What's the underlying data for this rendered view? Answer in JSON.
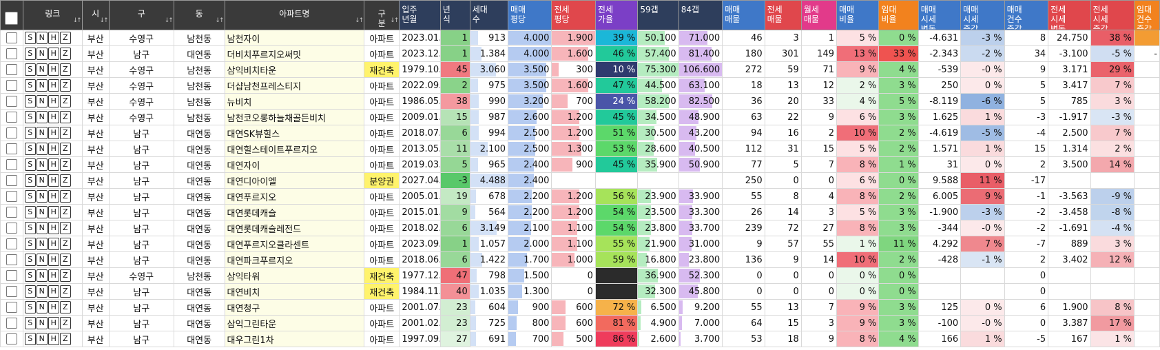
{
  "headers": [
    {
      "key": "chk",
      "label": "",
      "bg": "#3a3a3a"
    },
    {
      "key": "link",
      "label": "링크",
      "bg": "#3a3a3a"
    },
    {
      "key": "si",
      "label": "시",
      "bg": "#3a3a3a"
    },
    {
      "key": "gu",
      "label": "구",
      "bg": "#3a3a3a"
    },
    {
      "key": "dong",
      "label": "동",
      "bg": "#3a3a3a"
    },
    {
      "key": "name",
      "label": "아파트명",
      "bg": "#3a3a3a"
    },
    {
      "key": "type",
      "label": "구\n분",
      "bg": "#3a3a3a"
    },
    {
      "key": "year",
      "label": "입주\n년월",
      "bg": "#2e3e5c"
    },
    {
      "key": "age",
      "label": "년\n식",
      "bg": "#2e3e5c"
    },
    {
      "key": "hh",
      "label": "세대\n수",
      "bg": "#2e3e5c"
    },
    {
      "key": "sp",
      "label": "매매\n평당",
      "bg": "#3f78c8"
    },
    {
      "key": "jp",
      "label": "전세\n평당",
      "bg": "#e0474c"
    },
    {
      "key": "jr",
      "label": "전세\n가율",
      "bg": "#7b3fc6"
    },
    {
      "key": "g59",
      "label": "59갭",
      "bg": "#2e3e5c"
    },
    {
      "key": "g84",
      "label": "84갭",
      "bg": "#2e3e5c"
    },
    {
      "key": "sl",
      "label": "매매\n매물",
      "bg": "#3f78c8"
    },
    {
      "key": "jl",
      "label": "전세\n매물",
      "bg": "#e0474c"
    },
    {
      "key": "wl",
      "label": "월세\n매물",
      "bg": "#e23a8a"
    },
    {
      "key": "sr",
      "label": "매매\n비율",
      "bg": "#3f78c8"
    },
    {
      "key": "rr",
      "label": "임대\n비율",
      "bg": "#f2821e"
    },
    {
      "key": "sc",
      "label": "매매\n시세\n변동",
      "bg": "#3f78c8"
    },
    {
      "key": "sci",
      "label": "매매\n시세\n증감",
      "bg": "#3f78c8"
    },
    {
      "key": "sci2",
      "label": "매매\n건수\n증감",
      "bg": "#3f78c8"
    },
    {
      "key": "jc",
      "label": "전세\n시세\n변동",
      "bg": "#e0474c"
    },
    {
      "key": "jci",
      "label": "전세\n시세\n증감",
      "bg": "#e0474c"
    },
    {
      "key": "rci",
      "label": "임대\n건수\n증감",
      "bg": "#f2821e"
    }
  ],
  "link_buttons": [
    "S",
    "N",
    "H",
    "Z"
  ],
  "rows": [
    [
      "부산",
      "수영구",
      "남천동",
      "남천자이",
      "아파트",
      "2023.01.",
      "1",
      "913",
      "4.000",
      "1.900",
      "39 %",
      "50.100",
      "71.000",
      "46",
      "3",
      "1",
      "5 %",
      "0 %",
      "-4.631",
      "-3 %",
      "8",
      "24.750",
      "38 %",
      ""
    ],
    [
      "부산",
      "남구",
      "대연동",
      "더비치푸르지오써밋",
      "아파트",
      "2023.12.",
      "1",
      "1.384",
      "4.000",
      "1.600",
      "46 %",
      "57.400",
      "81.400",
      "180",
      "301",
      "149",
      "13 %",
      "33 %",
      "-2.343",
      "-2 %",
      "34",
      "-3.100",
      "-5 %",
      "-"
    ],
    [
      "부산",
      "수영구",
      "남천동",
      "삼익비치타운",
      "재건축",
      "1979.10.",
      "45",
      "3.060",
      "3.500",
      "300",
      "10 %",
      "75.300",
      "106.600",
      "272",
      "59",
      "71",
      "9 %",
      "4 %",
      "-539",
      "-0 %",
      "9",
      "3.171",
      "29 %",
      ""
    ],
    [
      "부산",
      "수영구",
      "남천동",
      "더샵남천프레스티지",
      "아파트",
      "2022.09.",
      "2",
      "975",
      "3.500",
      "1.600",
      "47 %",
      "44.500",
      "63.100",
      "18",
      "13",
      "12",
      "2 %",
      "3 %",
      "250",
      "0 %",
      "5",
      "3.417",
      "7 %",
      ""
    ],
    [
      "부산",
      "수영구",
      "남천동",
      "뉴비치",
      "아파트",
      "1986.05.",
      "38",
      "990",
      "3.200",
      "700",
      "24 %",
      "58.200",
      "82.500",
      "36",
      "20",
      "33",
      "4 %",
      "5 %",
      "-8.119",
      "-6 %",
      "5",
      "785",
      "3 %",
      ""
    ],
    [
      "부산",
      "수영구",
      "남천동",
      "남천코오롱하늘채골든비치",
      "아파트",
      "2009.01.",
      "15",
      "987",
      "2.600",
      "1.200",
      "45 %",
      "34.500",
      "48.900",
      "63",
      "22",
      "9",
      "6 %",
      "3 %",
      "1.625",
      "1 %",
      "-3",
      "-1.917",
      "-3 %",
      ""
    ],
    [
      "부산",
      "남구",
      "대연동",
      "대연SK뷰힐스",
      "아파트",
      "2018.07.",
      "6",
      "994",
      "2.500",
      "1.200",
      "51 %",
      "30.500",
      "43.200",
      "94",
      "16",
      "2",
      "10 %",
      "2 %",
      "-4.619",
      "-5 %",
      "-4",
      "2.500",
      "7 %",
      ""
    ],
    [
      "부산",
      "남구",
      "대연동",
      "대연힐스테이트푸르지오",
      "아파트",
      "2013.05.",
      "11",
      "2.100",
      "2.500",
      "1.300",
      "53 %",
      "28.600",
      "40.500",
      "112",
      "31",
      "15",
      "5 %",
      "2 %",
      "1.571",
      "1 %",
      "15",
      "1.314",
      "2 %",
      ""
    ],
    [
      "부산",
      "남구",
      "대연동",
      "대연자이",
      "아파트",
      "2019.03.",
      "5",
      "965",
      "2.400",
      "900",
      "45 %",
      "35.900",
      "50.900",
      "77",
      "5",
      "7",
      "8 %",
      "1 %",
      "31",
      "0 %",
      "2",
      "3.500",
      "14 %",
      ""
    ],
    [
      "부산",
      "남구",
      "대연동",
      "대연디아이엘",
      "분양권",
      "2027.04.",
      "-3",
      "4.488",
      "2.400",
      "",
      "",
      "",
      "",
      "250",
      "0",
      "0",
      "6 %",
      "0 %",
      "9.588",
      "11 %",
      "-17",
      "",
      "",
      ""
    ],
    [
      "부산",
      "남구",
      "대연동",
      "대연푸르지오",
      "아파트",
      "2005.01.",
      "19",
      "678",
      "2.200",
      "1.200",
      "56 %",
      "23.900",
      "33.900",
      "55",
      "8",
      "4",
      "8 %",
      "2 %",
      "6.005",
      "9 %",
      "-1",
      "-3.563",
      "-9 %",
      ""
    ],
    [
      "부산",
      "남구",
      "대연동",
      "대연롯데캐슬",
      "아파트",
      "2015.01.",
      "9",
      "564",
      "2.200",
      "1.200",
      "54 %",
      "23.500",
      "33.300",
      "26",
      "14",
      "3",
      "5 %",
      "3 %",
      "-1.900",
      "-3 %",
      "-2",
      "-3.458",
      "-8 %",
      ""
    ],
    [
      "부산",
      "남구",
      "대연동",
      "대연롯데캐슬레전드",
      "아파트",
      "2018.02.",
      "6",
      "3.149",
      "2.100",
      "1.100",
      "54 %",
      "23.800",
      "33.700",
      "239",
      "72",
      "27",
      "8 %",
      "3 %",
      "-344",
      "-0 %",
      "-2",
      "-1.691",
      "-4 %",
      ""
    ],
    [
      "부산",
      "남구",
      "대연동",
      "대연푸르지오클라센트",
      "아파트",
      "2023.09.",
      "1",
      "1.057",
      "2.000",
      "1.100",
      "55 %",
      "21.900",
      "31.000",
      "9",
      "57",
      "55",
      "1 %",
      "11 %",
      "4.292",
      "7 %",
      "-7",
      "889",
      "3 %",
      ""
    ],
    [
      "부산",
      "남구",
      "대연동",
      "대연파크푸르지오",
      "아파트",
      "2018.06.",
      "6",
      "1.422",
      "1.700",
      "1.000",
      "59 %",
      "16.800",
      "23.800",
      "136",
      "9",
      "14",
      "10 %",
      "2 %",
      "-428",
      "-1 %",
      "2",
      "3.402",
      "12 %",
      ""
    ],
    [
      "부산",
      "수영구",
      "남천동",
      "삼익타워",
      "재건축",
      "1977.12.",
      "47",
      "798",
      "1.500",
      "0",
      "",
      "36.900",
      "52.300",
      "0",
      "0",
      "0",
      "0 %",
      "0 %",
      "",
      "",
      "0",
      "",
      "",
      ""
    ],
    [
      "부산",
      "남구",
      "대연동",
      "대연비치",
      "재건축",
      "1984.11.",
      "40",
      "1.035",
      "1.300",
      "0",
      "",
      "32.300",
      "45.800",
      "0",
      "0",
      "0",
      "0 %",
      "0 %",
      "",
      "",
      "0",
      "",
      "",
      ""
    ],
    [
      "부산",
      "남구",
      "대연동",
      "대연청구",
      "아파트",
      "2001.07.",
      "23",
      "604",
      "900",
      "600",
      "72 %",
      "6.500",
      "9.200",
      "55",
      "13",
      "7",
      "9 %",
      "3 %",
      "125",
      "0 %",
      "6",
      "1.900",
      "8 %",
      ""
    ],
    [
      "부산",
      "남구",
      "대연동",
      "삼익그린타운",
      "아파트",
      "2001.02.",
      "23",
      "725",
      "800",
      "600",
      "81 %",
      "4.900",
      "7.000",
      "64",
      "15",
      "3",
      "9 %",
      "3 %",
      "-100",
      "-0 %",
      "0",
      "3.387",
      "17 %",
      ""
    ],
    [
      "부산",
      "남구",
      "대연동",
      "대우그린1차",
      "아파트",
      "1997.09.",
      "27",
      "691",
      "700",
      "500",
      "86 %",
      "2.600",
      "3.700",
      "53",
      "18",
      "9",
      "8 %",
      "4 %",
      "166",
      "1 %",
      "-5",
      "167",
      "1 %",
      ""
    ]
  ]
}
